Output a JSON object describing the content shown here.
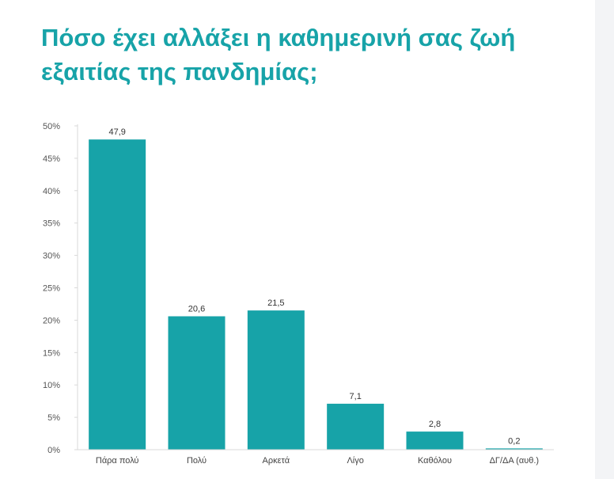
{
  "title": {
    "line1": "Πόσο έχει αλλάξει η καθημερινή σας ζωή",
    "line2": "εξαιτίας της πανδημίας;"
  },
  "colors": {
    "bar": "#17a3a8",
    "title": "#17a3a8",
    "axis": "#d9d9d9"
  },
  "chart_data": {
    "type": "bar",
    "title": "Πόσο έχει αλλάξει η καθημερινή σας ζωή εξαιτίας της πανδημίας;",
    "categories": [
      "Πάρα πολύ",
      "Πολύ",
      "Αρκετά",
      "Λίγο",
      "Καθόλου",
      "ΔΓ/ΔΑ (αυθ.)"
    ],
    "values": [
      47.9,
      20.6,
      21.5,
      7.1,
      2.8,
      0.2
    ],
    "value_labels": [
      "47,9",
      "20,6",
      "21,5",
      "7,1",
      "2,8",
      "0,2"
    ],
    "ylim": [
      0,
      50
    ],
    "yticks": [
      0,
      5,
      10,
      15,
      20,
      25,
      30,
      35,
      40,
      45,
      50
    ],
    "ytick_labels": [
      "0%",
      "5%",
      "10%",
      "15%",
      "20%",
      "25%",
      "30%",
      "35%",
      "40%",
      "45%",
      "50%"
    ],
    "xlabel": "",
    "ylabel": "",
    "grid": false,
    "legend": false
  }
}
